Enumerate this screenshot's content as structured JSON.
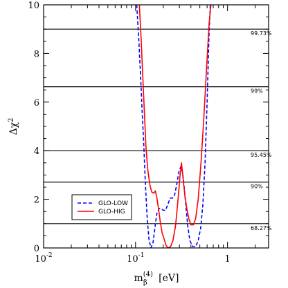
{
  "chart_data": {
    "type": "line",
    "xscale": "log",
    "xlim": [
      0.01,
      2.8
    ],
    "ylim": [
      0,
      10
    ],
    "xlabel": {
      "base": "m",
      "sub": "β",
      "sup": "(4)",
      "unit": "[eV]"
    },
    "ylabel": {
      "base": "Δχ",
      "sup": "2"
    },
    "x_ticks": [
      {
        "value": 0.01,
        "label_base": "10",
        "label_sup": "-2"
      },
      {
        "value": 0.1,
        "label_base": "10",
        "label_sup": "-1"
      },
      {
        "value": 1,
        "label_base": "1",
        "label_sup": ""
      }
    ],
    "y_ticks": [
      0,
      2,
      4,
      6,
      8,
      10
    ],
    "y_tick_labels": [
      "0",
      "2",
      "4",
      "6",
      "8",
      "10"
    ],
    "reference_lines": [
      {
        "y": 1.0,
        "label": "68.27%"
      },
      {
        "y": 2.71,
        "label": "90%"
      },
      {
        "y": 4.0,
        "label": "95.45%"
      },
      {
        "y": 6.63,
        "label": "99%"
      },
      {
        "y": 9.0,
        "label": "99.73%"
      }
    ],
    "legend_position": "lower-left",
    "series": [
      {
        "name": "GLO-LOW",
        "color": "#0000ff",
        "style": "dashed",
        "points": [
          [
            0.103,
            10.0
          ],
          [
            0.108,
            8.7
          ],
          [
            0.113,
            7.2
          ],
          [
            0.118,
            5.6
          ],
          [
            0.123,
            4.2
          ],
          [
            0.128,
            2.6
          ],
          [
            0.134,
            1.2
          ],
          [
            0.14,
            0.35
          ],
          [
            0.147,
            0.0
          ],
          [
            0.155,
            0.22
          ],
          [
            0.162,
            0.8
          ],
          [
            0.17,
            1.4
          ],
          [
            0.18,
            1.62
          ],
          [
            0.19,
            1.62
          ],
          [
            0.2,
            1.55
          ],
          [
            0.212,
            1.55
          ],
          [
            0.225,
            1.8
          ],
          [
            0.238,
            2.05
          ],
          [
            0.252,
            2.05
          ],
          [
            0.265,
            2.15
          ],
          [
            0.28,
            2.6
          ],
          [
            0.298,
            3.2
          ],
          [
            0.312,
            3.35
          ],
          [
            0.325,
            3.1
          ],
          [
            0.34,
            2.4
          ],
          [
            0.355,
            1.6
          ],
          [
            0.37,
            0.9
          ],
          [
            0.39,
            0.3
          ],
          [
            0.42,
            0.05
          ],
          [
            0.45,
            0.05
          ],
          [
            0.48,
            0.3
          ],
          [
            0.51,
            0.8
          ],
          [
            0.54,
            1.8
          ],
          [
            0.57,
            3.5
          ],
          [
            0.6,
            6.0
          ],
          [
            0.63,
            8.8
          ],
          [
            0.65,
            10.0
          ]
        ]
      },
      {
        "name": "GLO-HIG",
        "color": "#ff0000",
        "style": "solid",
        "points": [
          [
            0.11,
            10.0
          ],
          [
            0.115,
            8.6
          ],
          [
            0.12,
            7.0
          ],
          [
            0.125,
            5.5
          ],
          [
            0.13,
            4.1
          ],
          [
            0.136,
            3.2
          ],
          [
            0.143,
            2.6
          ],
          [
            0.15,
            2.3
          ],
          [
            0.158,
            2.25
          ],
          [
            0.164,
            2.35
          ],
          [
            0.17,
            2.1
          ],
          [
            0.178,
            1.6
          ],
          [
            0.186,
            1.05
          ],
          [
            0.195,
            0.6
          ],
          [
            0.205,
            0.35
          ],
          [
            0.215,
            0.1
          ],
          [
            0.225,
            0.0
          ],
          [
            0.24,
            0.05
          ],
          [
            0.255,
            0.3
          ],
          [
            0.272,
            0.9
          ],
          [
            0.29,
            2.0
          ],
          [
            0.305,
            3.0
          ],
          [
            0.316,
            3.5
          ],
          [
            0.33,
            2.8
          ],
          [
            0.345,
            2.1
          ],
          [
            0.362,
            1.6
          ],
          [
            0.38,
            1.2
          ],
          [
            0.4,
            0.95
          ],
          [
            0.425,
            0.95
          ],
          [
            0.45,
            1.2
          ],
          [
            0.48,
            2.0
          ],
          [
            0.515,
            3.5
          ],
          [
            0.55,
            5.2
          ],
          [
            0.59,
            7.3
          ],
          [
            0.63,
            9.2
          ],
          [
            0.66,
            10.0
          ]
        ]
      }
    ]
  }
}
